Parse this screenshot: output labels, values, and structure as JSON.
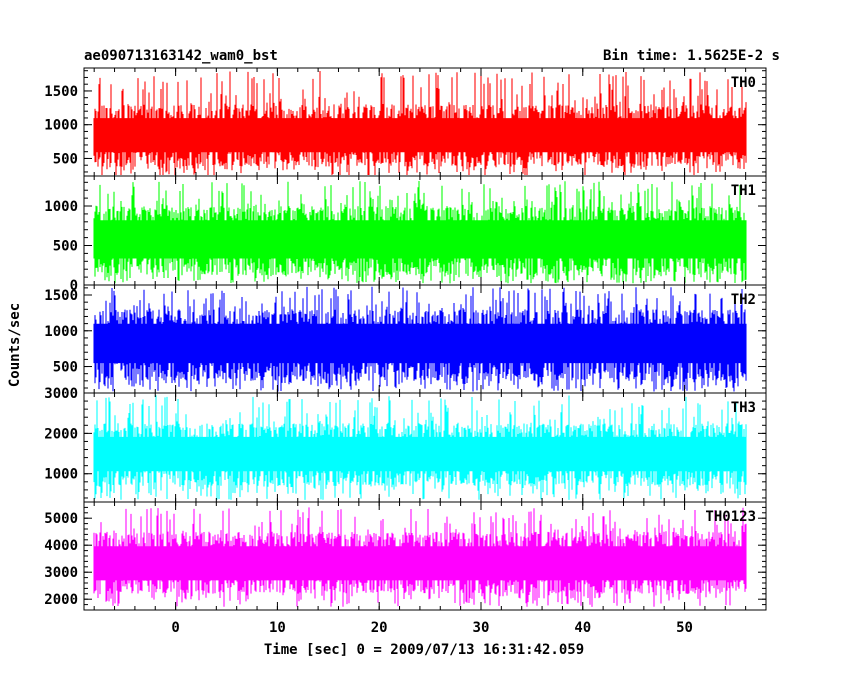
{
  "header": {
    "title": "ae090713163142_wam0_bst",
    "bin_time": "Bin time: 1.5625E-2 s"
  },
  "chart_data": {
    "type": "line",
    "title": "ae090713163142_wam0_bst",
    "xlabel": "Time [sec] 0 = 2009/07/13 16:31:42.059",
    "ylabel": "Counts/sec",
    "xlim": [
      -9,
      58
    ],
    "data_range": [
      -8,
      56
    ],
    "bin_time": 0.015625,
    "x_ticks": [
      0,
      10,
      20,
      30,
      40,
      50
    ],
    "grid": false,
    "panels": [
      {
        "name": "TH0",
        "color": "#ff0000",
        "ylim": [
          240,
          1840
        ],
        "y_ticks": [
          500,
          1000,
          1500
        ],
        "mean": 850,
        "band_low": 380,
        "band_high": 1300,
        "spike_max": 1800,
        "spike_min": 230
      },
      {
        "name": "TH1",
        "color": "#00ff00",
        "ylim": [
          0,
          1380
        ],
        "y_ticks": [
          0,
          500,
          1000
        ],
        "mean": 600,
        "band_low": 120,
        "band_high": 1000,
        "spike_max": 1320,
        "spike_min": 20
      },
      {
        "name": "TH2",
        "color": "#0000ff",
        "ylim": [
          130,
          1640
        ],
        "y_ticks": [
          500,
          1000,
          1500
        ],
        "mean": 850,
        "band_low": 300,
        "band_high": 1300,
        "spike_max": 1620,
        "spike_min": 150
      },
      {
        "name": "TH3",
        "color": "#00ffff",
        "ylim": [
          300,
          3000
        ],
        "y_ticks": [
          1000,
          2000,
          3000
        ],
        "mean": 1500,
        "band_low": 700,
        "band_high": 2250,
        "spike_max": 2950,
        "spike_min": 350
      },
      {
        "name": "TH0123",
        "color": "#ff00ff",
        "ylim": [
          1600,
          5600
        ],
        "y_ticks": [
          2000,
          3000,
          4000,
          5000
        ],
        "mean": 3300,
        "band_low": 2200,
        "band_high": 4500,
        "spike_max": 5400,
        "spike_min": 1700
      }
    ]
  }
}
